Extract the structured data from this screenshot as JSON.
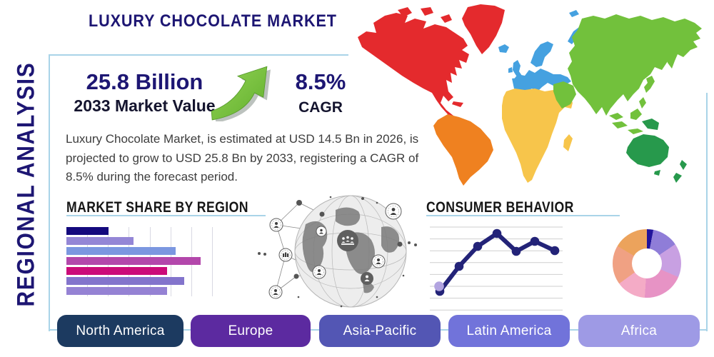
{
  "header": {
    "title": "LUXURY CHOCOLATE MARKET",
    "sidebar_label": "REGIONAL ANALYSIS"
  },
  "stats": {
    "market_value": "25.8 Billion",
    "market_value_label": "2033 Market Value",
    "cagr_value": "8.5%",
    "cagr_label": "CAGR"
  },
  "description": "Luxury Chocolate Market, is estimated at USD 14.5 Bn in 2026, is projected to grow to USD 25.8 Bn by 2033, registering a CAGR of 8.5% during the forecast period.",
  "icons": {
    "growth_arrow": "green-curved-growth-arrow",
    "globe_network": "globe-with-connected-people-network"
  },
  "theme": {
    "navy": "#1d1673",
    "dark_text": "#14142e",
    "body_text": "#3d3d3d",
    "heading_text": "#161616",
    "box_border": "#a9d4e8",
    "arrow_green_light": "#93d355",
    "arrow_green_dark": "#62b02e",
    "arrow_shadow": "#9fa8a3",
    "gridline": "#d9d9e3"
  },
  "map": {
    "colors": {
      "north_america": "#e42a2d",
      "south_america": "#ef8120",
      "europe": "#45a1e0",
      "africa": "#f7c54b",
      "asia": "#72c13c",
      "oceania": "#27994c"
    }
  },
  "chart_data": [
    {
      "type": "bar",
      "title": "MARKET SHARE BY REGION",
      "orientation": "horizontal",
      "value_labels_shown": false,
      "bars": [
        {
          "color": "#14097d",
          "length": 59
        },
        {
          "color": "#9486d6",
          "length": 94
        },
        {
          "color": "#7b97e0",
          "length": 153
        },
        {
          "color": "#b347ab",
          "length": 188
        },
        {
          "color": "#cb0b79",
          "length": 141
        },
        {
          "color": "#8374cc",
          "length": 165
        },
        {
          "color": "#9582d4",
          "length": 141
        }
      ],
      "note": "bar lengths are relative units; no axis labels shown in source"
    },
    {
      "type": "line",
      "title": "CONSUMER BEHAVIOR",
      "line_color": "#232378",
      "highlight_point_color": "#b2a4e0",
      "points": [
        [
          16,
          98
        ],
        [
          43,
          63
        ],
        [
          69,
          35
        ],
        [
          96,
          17
        ],
        [
          123,
          42
        ],
        [
          149,
          28
        ],
        [
          177,
          41
        ]
      ],
      "highlight_point": [
        15,
        91
      ],
      "gridline_count": 8,
      "note": "points are chart-relative px (190x130 area, y down); no axis labels shown"
    },
    {
      "type": "pie",
      "variant": "donut",
      "segments": [
        {
          "color": "#22149c",
          "value": 3
        },
        {
          "color": "#8f7dd8",
          "value": 12.5
        },
        {
          "color": "#c8a0e2",
          "value": 16
        },
        {
          "color": "#e793c5",
          "value": 19.5
        },
        {
          "color": "#f4abc6",
          "value": 14
        },
        {
          "color": "#f0a183",
          "value": 18.5
        },
        {
          "color": "#eca35c",
          "value": 16.5
        }
      ],
      "note": "no labels or values shown in source"
    }
  ],
  "region_buttons": [
    {
      "label": "North America",
      "color": "#1c3a60"
    },
    {
      "label": "Europe",
      "color": "#5c2aa0"
    },
    {
      "label": "Asia-Pacific",
      "color": "#5356b4"
    },
    {
      "label": "Latin America",
      "color": "#7173da"
    },
    {
      "label": "Africa",
      "color": "#9e9ae5"
    }
  ]
}
